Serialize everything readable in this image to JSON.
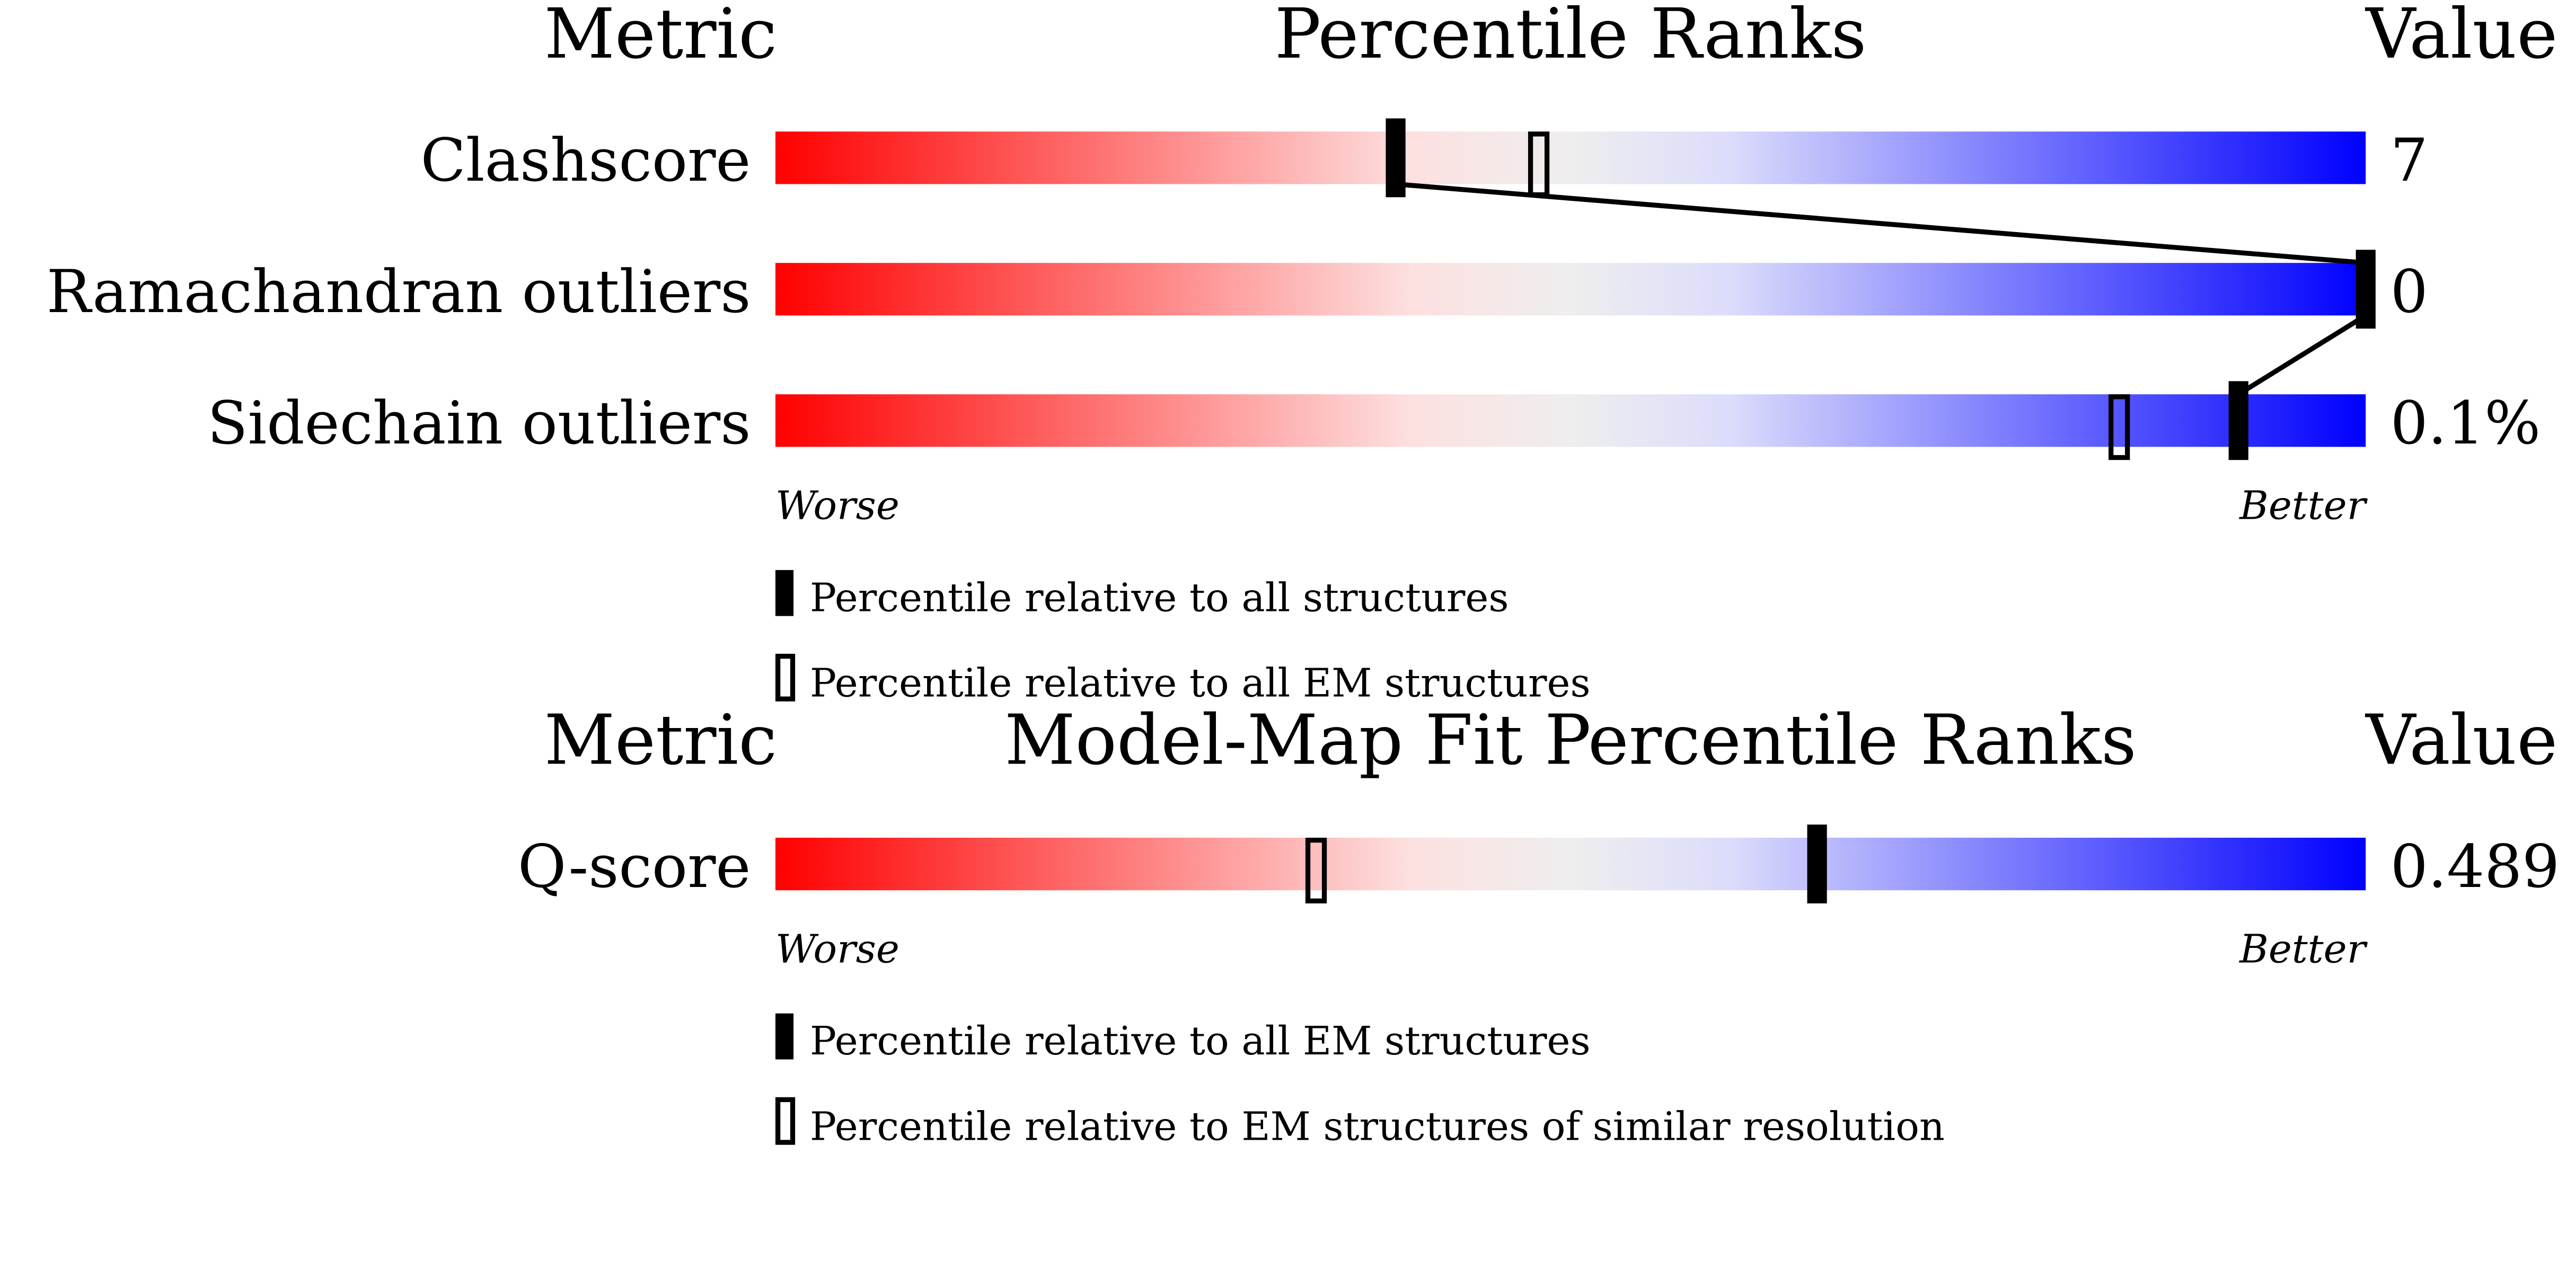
{
  "chart_data": [
    {
      "type": "slider",
      "header": {
        "metric": "Metric",
        "title": "Percentile Ranks",
        "value": "Value"
      },
      "xlim": [
        0,
        100
      ],
      "rows": [
        {
          "metric": "Clashscore",
          "value": "7",
          "percentile_all": 39,
          "percentile_em": 48
        },
        {
          "metric": "Ramachandran outliers",
          "value": "0",
          "percentile_all": 100,
          "percentile_em": null
        },
        {
          "metric": "Sidechain outliers",
          "value": "0.1%",
          "percentile_all": 92,
          "percentile_em": 84.5
        }
      ],
      "worse_label": "Worse",
      "better_label": "Better",
      "legend": {
        "filled": "Percentile relative to all structures",
        "open": "Percentile relative to all EM structures"
      }
    },
    {
      "type": "slider",
      "header": {
        "metric": "Metric",
        "title": "Model-Map Fit Percentile Ranks",
        "value": "Value"
      },
      "xlim": [
        0,
        100
      ],
      "rows": [
        {
          "metric": "Q-score",
          "value": "0.489",
          "percentile_all": 65.5,
          "percentile_em": 34
        }
      ],
      "worse_label": "Worse",
      "better_label": "Better",
      "legend": {
        "filled": "Percentile relative to all EM structures",
        "open": "Percentile relative to EM structures of similar resolution"
      }
    }
  ],
  "colors": {
    "worse": "#ff0000",
    "middle": "#eeeeee",
    "better": "#0000ff",
    "marker": "#000000"
  }
}
